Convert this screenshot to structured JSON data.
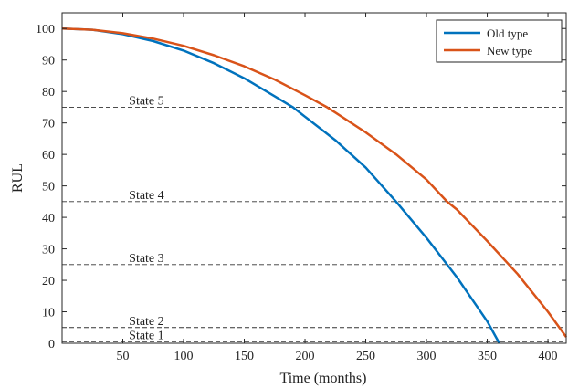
{
  "chart_data": {
    "type": "line",
    "title": "",
    "xlabel": "Time (months)",
    "ylabel": "RUL",
    "xlim": [
      0,
      415
    ],
    "ylim": [
      0,
      105
    ],
    "xticks": [
      50,
      100,
      150,
      200,
      250,
      300,
      350,
      400
    ],
    "yticks": [
      0,
      10,
      20,
      30,
      40,
      50,
      60,
      70,
      80,
      90,
      100
    ],
    "grid": false,
    "legend_position": "top-right",
    "series": [
      {
        "name": "Old type",
        "color": "#0072BD",
        "x": [
          0,
          25,
          50,
          75,
          100,
          125,
          150,
          175,
          190,
          200,
          225,
          250,
          275,
          300,
          325,
          350,
          360
        ],
        "y": [
          100,
          99.6,
          98.2,
          96.0,
          93.0,
          89.0,
          84.2,
          78.5,
          75.0,
          72.0,
          64.5,
          55.8,
          45.0,
          33.5,
          21.0,
          7.0,
          0
        ]
      },
      {
        "name": "New type",
        "color": "#D95319",
        "x": [
          0,
          25,
          50,
          75,
          100,
          125,
          150,
          175,
          200,
          218,
          225,
          250,
          275,
          300,
          317,
          325,
          350,
          375,
          400,
          415
        ],
        "y": [
          100,
          99.6,
          98.5,
          96.8,
          94.5,
          91.5,
          88.0,
          83.8,
          78.8,
          75.0,
          73.3,
          67.0,
          60.0,
          52.0,
          45.0,
          42.5,
          32.5,
          22.0,
          10.0,
          2.0
        ]
      }
    ],
    "annotations": [
      {
        "text": "State 5",
        "y": 75,
        "x": 55
      },
      {
        "text": "State 4",
        "y": 45,
        "x": 55
      },
      {
        "text": "State 3",
        "y": 25,
        "x": 55
      },
      {
        "text": "State 2",
        "y": 5,
        "x": 55
      },
      {
        "text": "State 1",
        "y": 0.5,
        "x": 55
      }
    ]
  }
}
